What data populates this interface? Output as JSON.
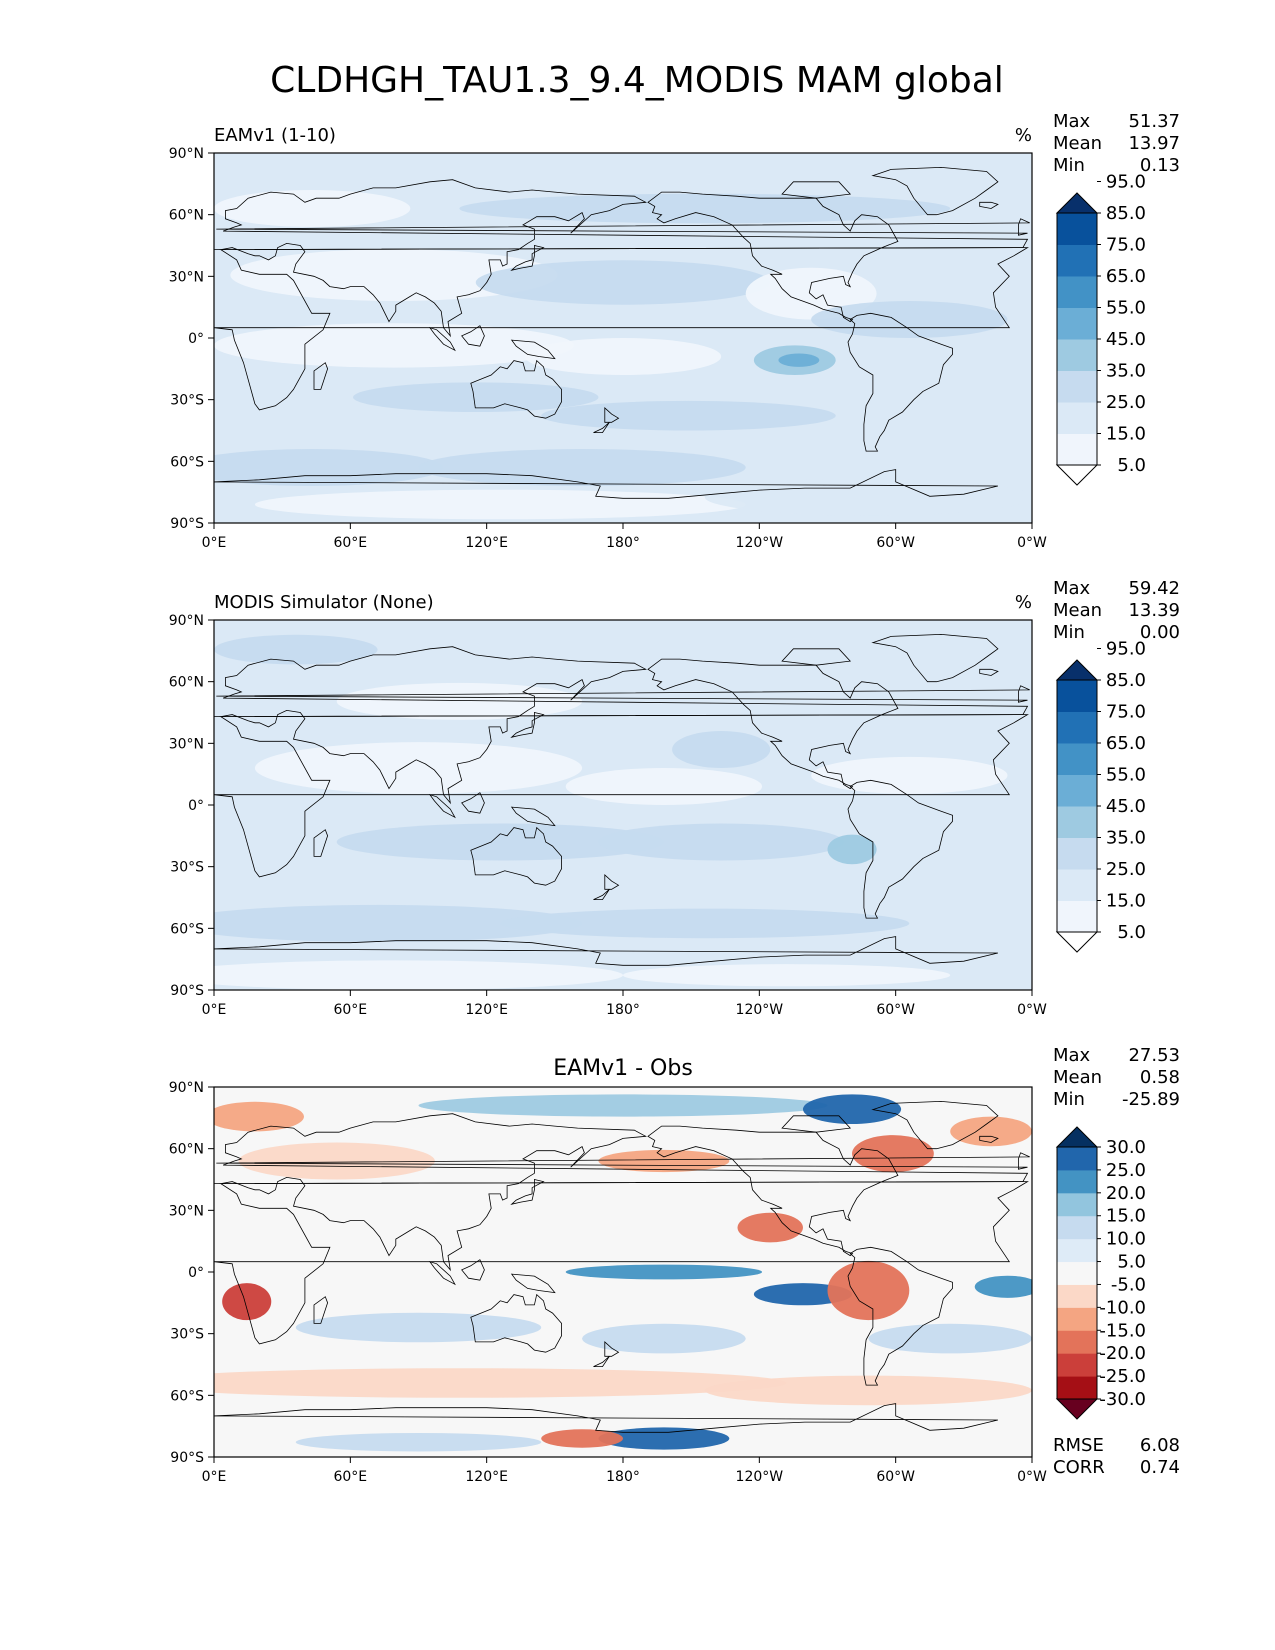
{
  "title": "CLDHGH_TAU1.3_9.4_MODIS MAM global",
  "lat_ticks": [
    "90°N",
    "60°N",
    "30°N",
    "0°",
    "30°S",
    "60°S",
    "90°S"
  ],
  "lon_ticks": [
    "0°E",
    "60°E",
    "120°E",
    "180°",
    "120°W",
    "60°W",
    "0°W"
  ],
  "panels": [
    {
      "title_left": "EAMv1 (1-10)",
      "title_center": "",
      "units": "%",
      "stats": [
        {
          "label": "Max",
          "value": "51.37"
        },
        {
          "label": "Mean",
          "value": "13.97"
        },
        {
          "label": "Min",
          "value": "0.13"
        }
      ],
      "colorbar": {
        "colors": [
          "#ffffff",
          "#f0f5fc",
          "#dbe9f6",
          "#c6dbef",
          "#9ecae1",
          "#6baed6",
          "#4292c6",
          "#2171b5",
          "#08519c",
          "#08306b"
        ],
        "labels": [
          "5.0",
          "15.0",
          "25.0",
          "35.0",
          "45.0",
          "55.0",
          "65.0",
          "75.0",
          "85.0",
          "95.0"
        ]
      },
      "field_type": "model"
    },
    {
      "title_left": "MODIS Simulator (None)",
      "title_center": "",
      "units": "%",
      "stats": [
        {
          "label": "Max",
          "value": "59.42"
        },
        {
          "label": "Mean",
          "value": "13.39"
        },
        {
          "label": "Min",
          "value": "0.00"
        }
      ],
      "colorbar": {
        "colors": [
          "#ffffff",
          "#f0f5fc",
          "#dbe9f6",
          "#c6dbef",
          "#9ecae1",
          "#6baed6",
          "#4292c6",
          "#2171b5",
          "#08519c",
          "#08306b"
        ],
        "labels": [
          "5.0",
          "15.0",
          "25.0",
          "35.0",
          "45.0",
          "55.0",
          "65.0",
          "75.0",
          "85.0",
          "95.0"
        ]
      },
      "field_type": "obs"
    },
    {
      "title_left": "",
      "title_center": "EAMv1 - Obs",
      "units": "",
      "stats": [
        {
          "label": "Max",
          "value": "27.53"
        },
        {
          "label": "Mean",
          "value": "0.58"
        },
        {
          "label": "Min",
          "value": "-25.89"
        }
      ],
      "colorbar": {
        "colors": [
          "#67001f",
          "#a50f15",
          "#cb3f3a",
          "#e3735a",
          "#f4a582",
          "#fbd8c7",
          "#f7f7f7",
          "#deebf7",
          "#c6dbef",
          "#92c5de",
          "#4393c3",
          "#2166ac",
          "#053061"
        ],
        "labels": [
          "-30.0",
          "-25.0",
          "-20.0",
          "-15.0",
          "-10.0",
          "-5.0",
          "5.0",
          "10.0",
          "15.0",
          "20.0",
          "25.0",
          "30.0"
        ]
      },
      "field_type": "diff",
      "extra_stats": [
        {
          "label": "RMSE",
          "value": "6.08"
        },
        {
          "label": "CORR",
          "value": "0.74"
        }
      ]
    }
  ]
}
